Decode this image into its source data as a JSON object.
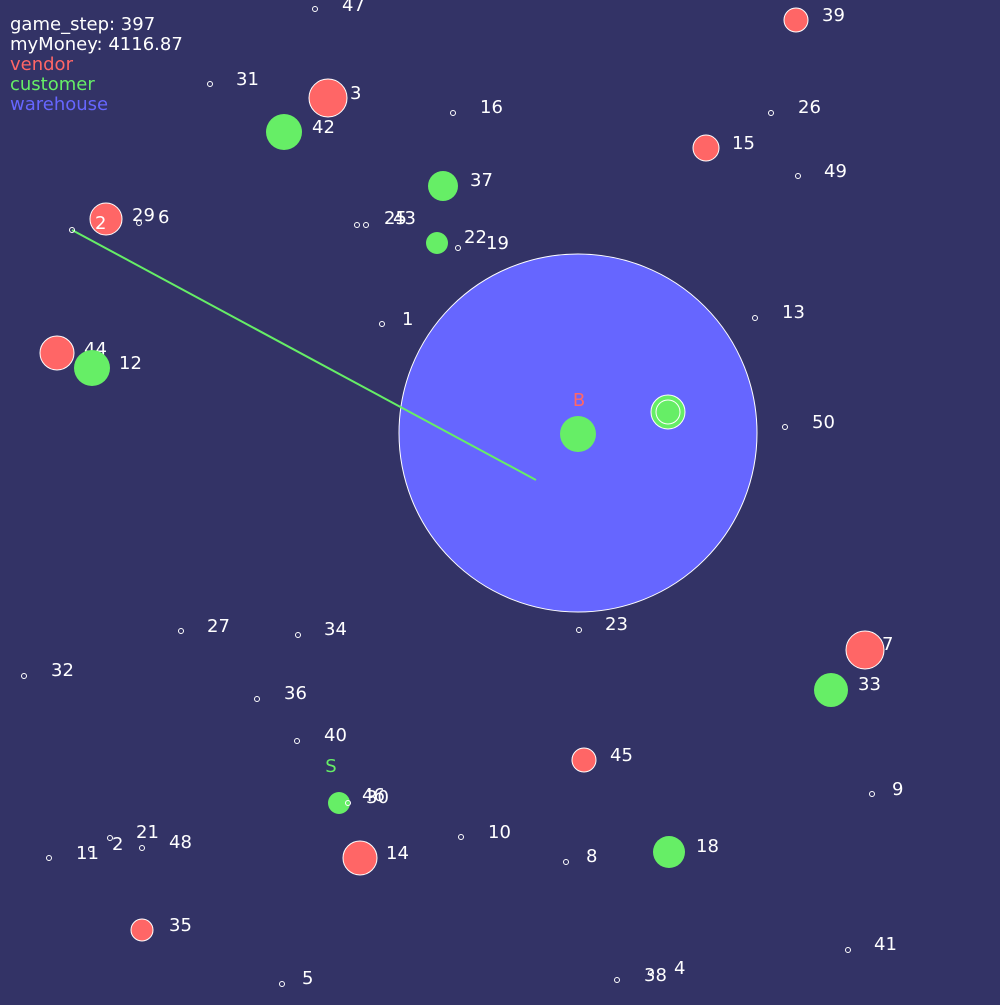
{
  "hud": {
    "game_step": "game_step: 397",
    "my_money": "myMoney: 4116.87"
  },
  "legend": [
    {
      "label": "vendor",
      "color": "#ff6666"
    },
    {
      "label": "customer",
      "color": "#66ee66"
    },
    {
      "label": "warehouse",
      "color": "#6666ff"
    }
  ],
  "colors": {
    "background": "#333366",
    "vendor": "#ff6666",
    "customer": "#66ee66",
    "warehouse": "#6666ff",
    "route": "#66ee66",
    "label": "#ffffff"
  },
  "markers": {
    "warehouse_label": "B",
    "start_label": "S"
  },
  "nodes": [
    {
      "id": "47",
      "kind": "node"
    },
    {
      "id": "39",
      "kind": "vendor"
    },
    {
      "id": "31",
      "kind": "node"
    },
    {
      "id": "3",
      "kind": "vendor"
    },
    {
      "id": "42",
      "kind": "customer"
    },
    {
      "id": "16",
      "kind": "node"
    },
    {
      "id": "26",
      "kind": "node"
    },
    {
      "id": "15",
      "kind": "vendor"
    },
    {
      "id": "49",
      "kind": "node"
    },
    {
      "id": "37",
      "kind": "customer"
    },
    {
      "id": "29",
      "kind": "vendor"
    },
    {
      "id": "6",
      "kind": "node"
    },
    {
      "id": "2?",
      "kind": "node"
    },
    {
      "id": "25",
      "kind": "node"
    },
    {
      "id": "43",
      "kind": "node"
    },
    {
      "id": "22",
      "kind": "customer"
    },
    {
      "id": "19",
      "kind": "node"
    },
    {
      "id": "1",
      "kind": "node"
    },
    {
      "id": "13",
      "kind": "node"
    },
    {
      "id": "44",
      "kind": "vendor"
    },
    {
      "id": "12",
      "kind": "customer"
    },
    {
      "id": "50",
      "kind": "node"
    },
    {
      "id": "27",
      "kind": "node"
    },
    {
      "id": "34",
      "kind": "node"
    },
    {
      "id": "23",
      "kind": "node"
    },
    {
      "id": "7",
      "kind": "vendor"
    },
    {
      "id": "33",
      "kind": "customer"
    },
    {
      "id": "32",
      "kind": "node"
    },
    {
      "id": "36",
      "kind": "node"
    },
    {
      "id": "40",
      "kind": "node"
    },
    {
      "id": "45",
      "kind": "vendor"
    },
    {
      "id": "9",
      "kind": "node"
    },
    {
      "id": "46",
      "kind": "customer"
    },
    {
      "id": "30",
      "kind": "node"
    },
    {
      "id": "10",
      "kind": "node"
    },
    {
      "id": "21",
      "kind": "node"
    },
    {
      "id": "2",
      "kind": "node"
    },
    {
      "id": "48",
      "kind": "node"
    },
    {
      "id": "11",
      "kind": "node"
    },
    {
      "id": "14",
      "kind": "vendor"
    },
    {
      "id": "8",
      "kind": "node"
    },
    {
      "id": "18",
      "kind": "customer"
    },
    {
      "id": "35",
      "kind": "vendor"
    },
    {
      "id": "41",
      "kind": "node"
    },
    {
      "id": "5",
      "kind": "node"
    },
    {
      "id": "38",
      "kind": "node"
    },
    {
      "id": "4",
      "kind": "node"
    }
  ]
}
